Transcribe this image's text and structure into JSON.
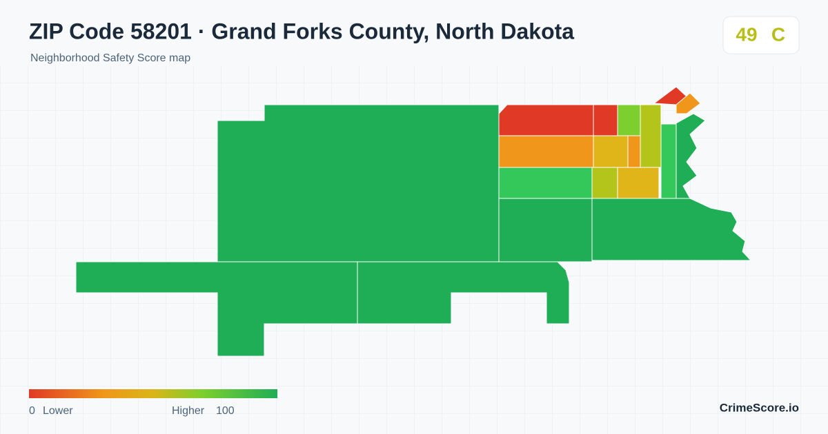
{
  "header": {
    "title": "ZIP Code 58201 · Grand Forks County, North Dakota",
    "subtitle": "Neighborhood Safety Score map"
  },
  "score": {
    "value": "49",
    "grade": "C"
  },
  "legend": {
    "min": "0",
    "min_label": "Lower",
    "max_label": "Higher",
    "max": "100"
  },
  "footer": {
    "brand": "CrimeScore.io"
  }
}
